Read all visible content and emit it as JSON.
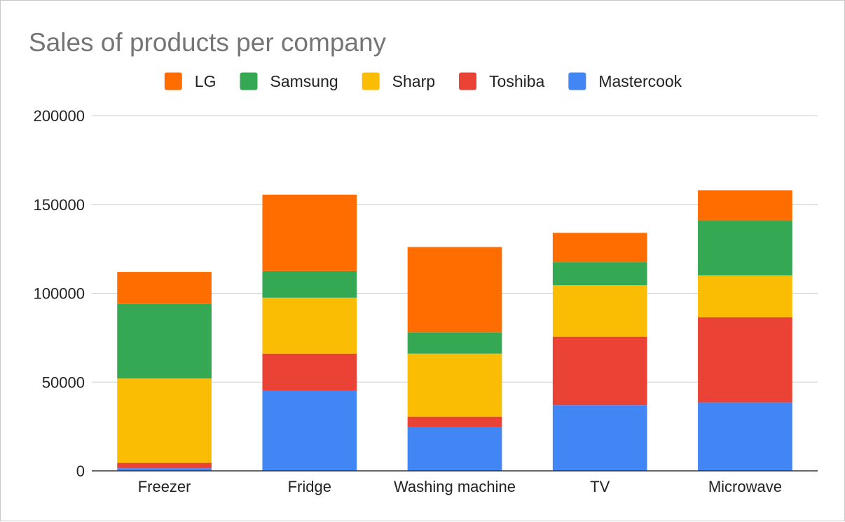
{
  "chart_data": {
    "type": "bar",
    "stacked": true,
    "title": "Sales of products per company",
    "xlabel": "",
    "ylabel": "",
    "categories": [
      "Freezer",
      "Fridge",
      "Washing machine",
      "TV",
      "Microwave"
    ],
    "series": [
      {
        "name": "Mastercook",
        "color": "#4285f4",
        "values": [
          1500,
          45000,
          24500,
          37000,
          38500
        ]
      },
      {
        "name": "Toshiba",
        "color": "#ea4335",
        "values": [
          3000,
          21000,
          6000,
          38500,
          48000
        ]
      },
      {
        "name": "Sharp",
        "color": "#fbbc04",
        "values": [
          47500,
          31500,
          35500,
          29000,
          23500
        ]
      },
      {
        "name": "Samsung",
        "color": "#34a853",
        "values": [
          42000,
          15000,
          12000,
          13000,
          31000
        ]
      },
      {
        "name": "LG",
        "color": "#ff6d01",
        "values": [
          18000,
          43000,
          48000,
          16500,
          17000
        ]
      }
    ],
    "legend_order": [
      "LG",
      "Samsung",
      "Sharp",
      "Toshiba",
      "Mastercook"
    ],
    "legend_position": "top",
    "ylim": [
      0,
      200000
    ],
    "yticks": [
      "0",
      "50000",
      "100000",
      "150000",
      "200000"
    ],
    "grid": true
  }
}
